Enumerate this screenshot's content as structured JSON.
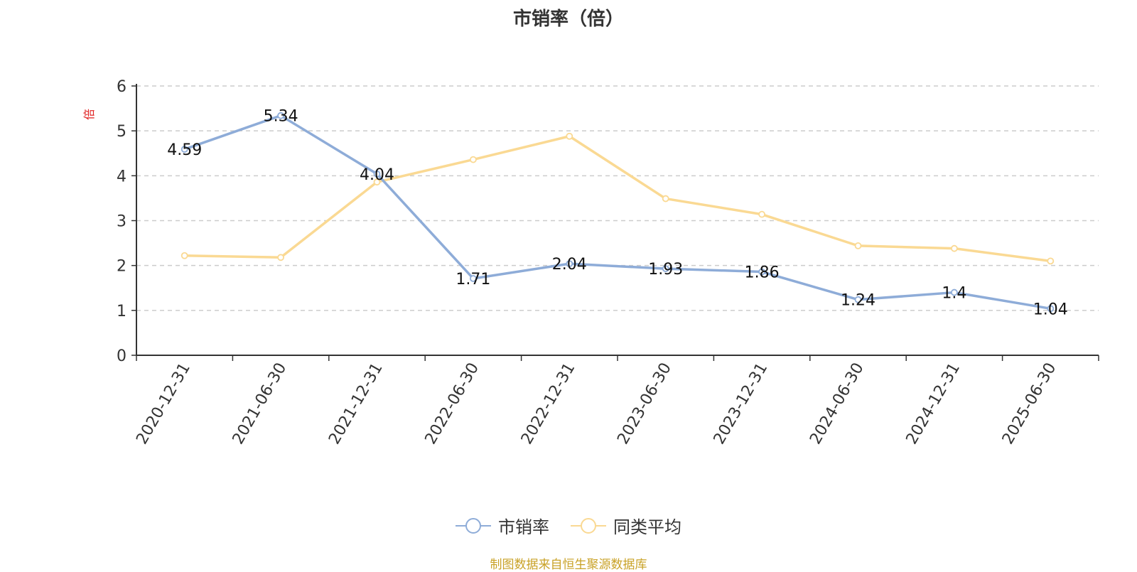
{
  "chart_data": {
    "type": "line",
    "title": "市销率（倍）",
    "ylabel": "倍",
    "ylim": [
      0,
      6
    ],
    "yticks": [
      0,
      1,
      2,
      3,
      4,
      5,
      6
    ],
    "grid": true,
    "legend_position": "bottom",
    "categories": [
      "2020-12-31",
      "2021-06-30",
      "2021-12-31",
      "2022-06-30",
      "2022-12-31",
      "2023-06-30",
      "2023-12-31",
      "2024-06-30",
      "2024-12-31",
      "2025-06-30"
    ],
    "series": [
      {
        "name": "市销率",
        "color": "#8eacd8",
        "values": [
          4.59,
          5.34,
          4.04,
          1.71,
          2.04,
          1.93,
          1.86,
          1.24,
          1.4,
          1.04
        ],
        "labels": [
          "4.59",
          "5.34",
          "4.04",
          "1.71",
          "2.04",
          "1.93",
          "1.86",
          "1.24",
          "1.4",
          "1.04"
        ]
      },
      {
        "name": "同类平均",
        "color": "#fad993",
        "values": [
          2.22,
          2.18,
          3.86,
          4.36,
          4.88,
          3.49,
          3.14,
          2.44,
          2.38,
          2.1
        ]
      }
    ]
  },
  "source": "制图数据来自恒生聚源数据库"
}
